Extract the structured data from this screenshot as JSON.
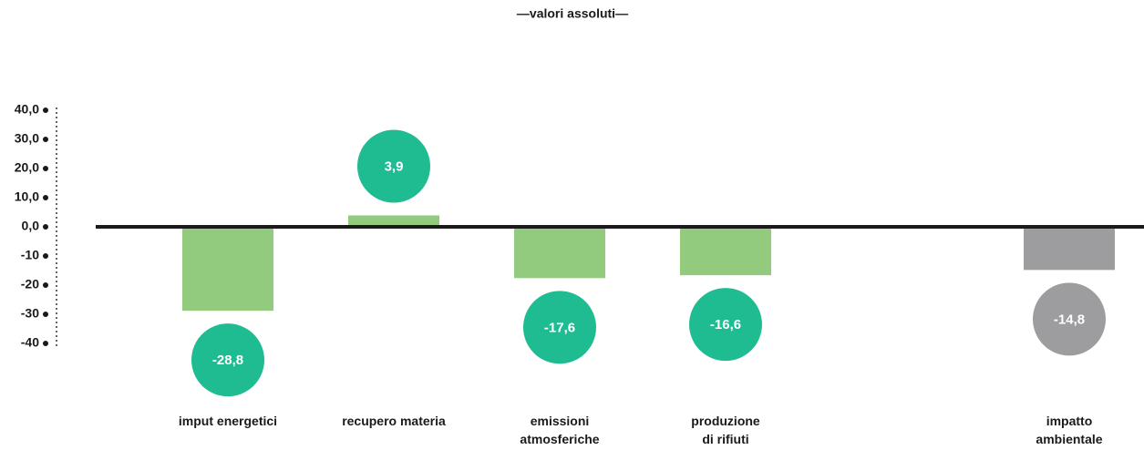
{
  "chart_data": {
    "type": "bar",
    "title": "—valori assoluti—",
    "categories": [
      "imput energetici",
      "recupero materia",
      "emissioni\natmosferiche",
      "produzione\ndi rifiuti",
      null,
      "impatto\nambientale"
    ],
    "values": [
      -28.8,
      3.9,
      -17.6,
      -16.6,
      null,
      -14.8
    ],
    "value_labels": [
      "-28,8",
      "3,9",
      "-17,6",
      "-16,6",
      null,
      "-14,8"
    ],
    "colors": [
      "#93cb7e",
      "#93cb7e",
      "#93cb7e",
      "#93cb7e",
      null,
      "#9d9d9f"
    ],
    "label_colors": [
      "#1fbb91",
      "#1fbb91",
      "#1fbb91",
      "#1fbb91",
      null,
      "#9d9d9f"
    ],
    "ylim": [
      -40,
      40
    ],
    "yticks": [
      {
        "value": 40,
        "label": "40,0"
      },
      {
        "value": 30,
        "label": "30,0"
      },
      {
        "value": 20,
        "label": "20,0"
      },
      {
        "value": 10,
        "label": "10,0"
      },
      {
        "value": 0,
        "label": "0,0"
      },
      -10,
      -20,
      -30,
      -40
    ]
  }
}
